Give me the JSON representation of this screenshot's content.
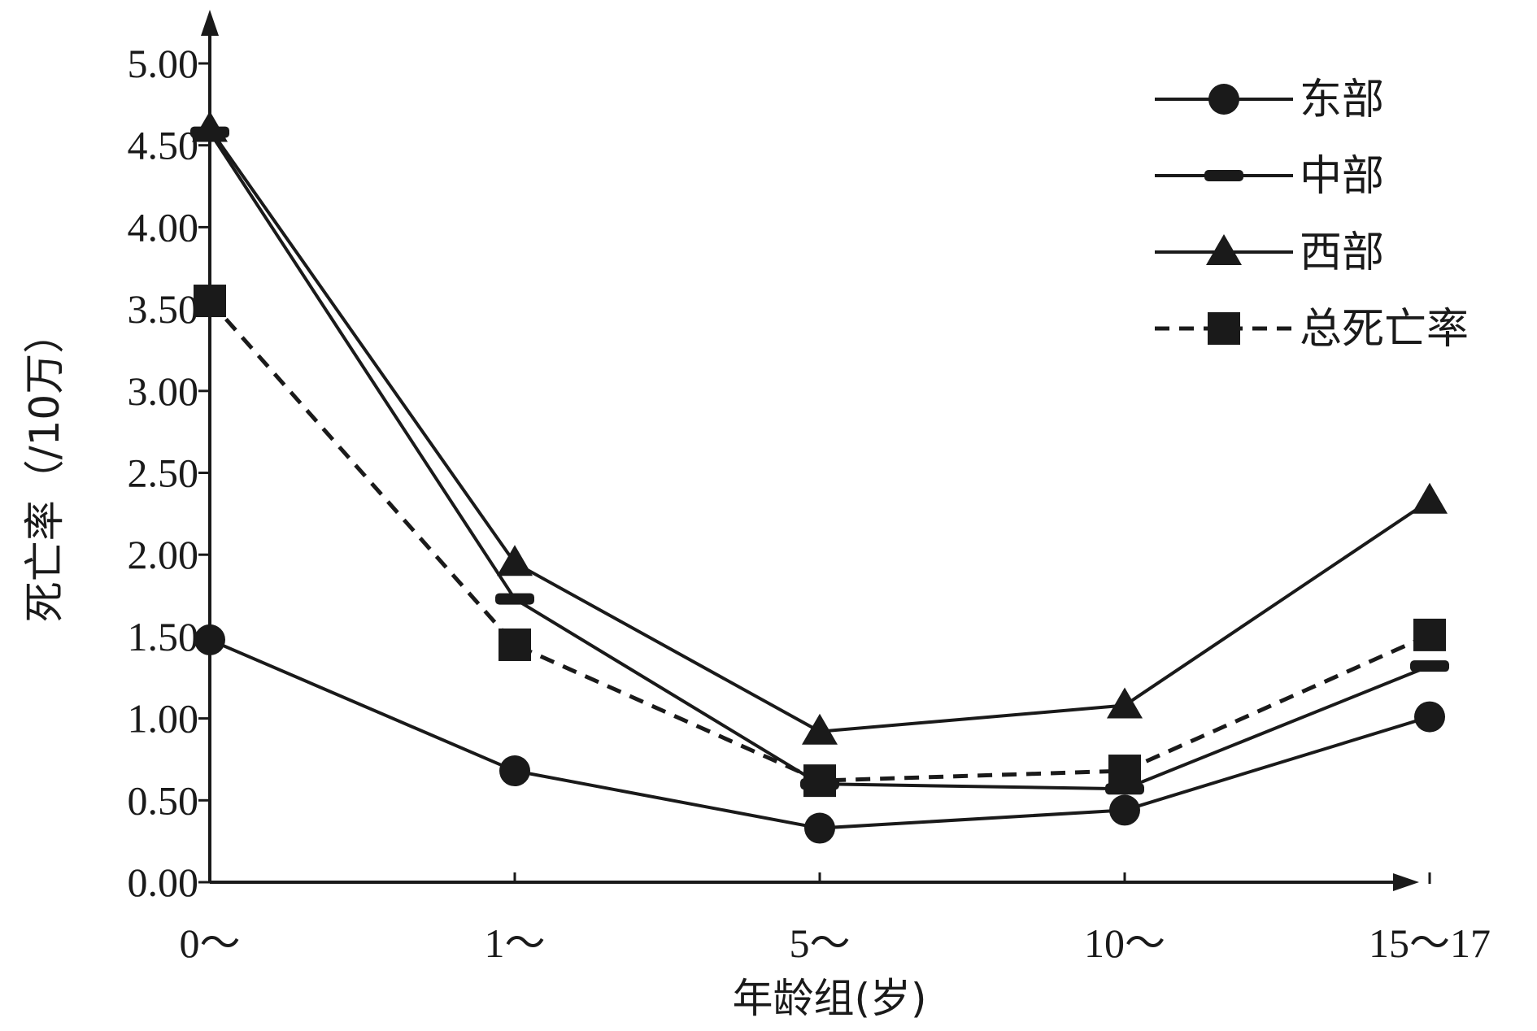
{
  "chart_data": {
    "type": "line",
    "xlabel": "年龄组(岁)",
    "ylabel": "死亡率（/10万）",
    "categories": [
      "0～",
      "1～",
      "5～",
      "10～",
      "15～17"
    ],
    "ylim": [
      0,
      5
    ],
    "yticks": [
      "0.00",
      "0.50",
      "1.00",
      "1.50",
      "2.00",
      "2.50",
      "3.00",
      "3.50",
      "4.00",
      "4.50",
      "5.00"
    ],
    "grid": false,
    "legend_position": "top-right",
    "series": [
      {
        "name": "东部",
        "marker": "circle",
        "dash": false,
        "values": [
          1.48,
          0.68,
          0.33,
          0.44,
          1.01
        ]
      },
      {
        "name": "中部",
        "marker": "bar",
        "dash": false,
        "values": [
          4.58,
          1.73,
          0.6,
          0.57,
          1.32
        ]
      },
      {
        "name": "西部",
        "marker": "triangle",
        "dash": false,
        "values": [
          4.6,
          1.95,
          0.92,
          1.08,
          2.33
        ]
      },
      {
        "name": "总死亡率",
        "marker": "square",
        "dash": true,
        "values": [
          3.55,
          1.45,
          0.62,
          0.68,
          1.51
        ]
      }
    ],
    "colors": {
      "line": "#1a1a1a",
      "background": "#ffffff"
    }
  }
}
